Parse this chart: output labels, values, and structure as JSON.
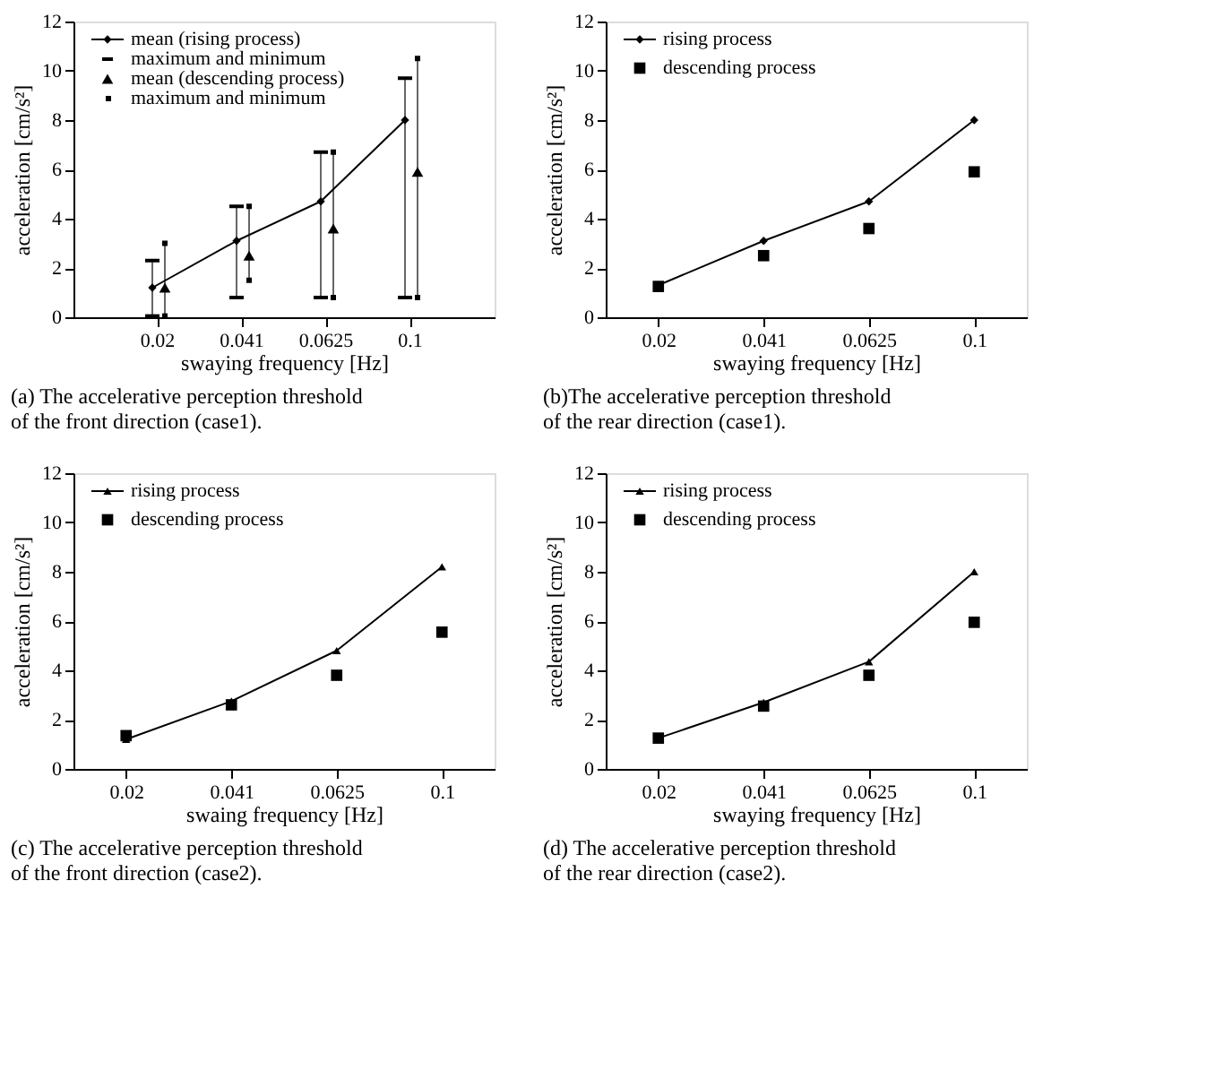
{
  "chart_data": [
    {
      "type": "line",
      "title": [
        "(a) The accelerative perception threshold",
        "of the front direction (case1)."
      ],
      "xlabel": "swaying frequency [Hz]",
      "ylabel": "acceleration [cm/s²]",
      "categories": [
        "0.02",
        "0.041",
        "0.0625",
        "0.1"
      ],
      "ylim": [
        0,
        12
      ],
      "yticks": [
        0,
        2,
        4,
        6,
        8,
        10,
        12
      ],
      "grid": false,
      "legend": "top left",
      "annotations": [
        "maximum and minimum",
        "maximum and minimum"
      ],
      "series": [
        {
          "name": "mean (rising process)",
          "type": "line",
          "marker": "diamond",
          "color": "#000000",
          "values": [
            1.2,
            3.1,
            4.7,
            8.0
          ],
          "errors": [
            [
              0.05,
              2.3
            ],
            [
              0.8,
              4.5
            ],
            [
              0.8,
              6.7
            ],
            [
              0.8,
              9.7
            ]
          ]
        },
        {
          "name": "mean (descending process)",
          "type": "scatter",
          "marker": "triangle",
          "color": "#000000",
          "values": [
            1.2,
            2.5,
            3.6,
            5.9
          ],
          "errors": [
            [
              0.05,
              3.0
            ],
            [
              1.5,
              4.5
            ],
            [
              0.8,
              6.7
            ],
            [
              0.8,
              10.5
            ]
          ]
        }
      ]
    },
    {
      "type": "line",
      "title": [
        "(b)The accelerative perception threshold",
        "of the rear direction (case1)."
      ],
      "xlabel": "swaying frequency [Hz]",
      "ylabel": "acceleration [cm/s²]",
      "categories": [
        "0.02",
        "0.041",
        "0.0625",
        "0.1"
      ],
      "ylim": [
        0,
        12
      ],
      "yticks": [
        0,
        2,
        4,
        6,
        8,
        10,
        12
      ],
      "grid": false,
      "legend": "top left",
      "series": [
        {
          "name": "rising process",
          "type": "line",
          "marker": "diamond",
          "color": "#000000",
          "values": [
            1.3,
            3.1,
            4.7,
            8.0
          ]
        },
        {
          "name": "descending process",
          "type": "scatter",
          "marker": "square",
          "color": "#000000",
          "values": [
            1.25,
            2.5,
            3.6,
            5.9
          ]
        }
      ]
    },
    {
      "type": "line",
      "title": [
        "(c) The accelerative perception threshold",
        "of the front direction (case2)."
      ],
      "xlabel": "swaing frequency [Hz]",
      "ylabel": "acceleration [cm/s²]",
      "categories": [
        "0.02",
        "0.041",
        "0.0625",
        "0.1"
      ],
      "ylim": [
        0,
        12
      ],
      "yticks": [
        0,
        2,
        4,
        6,
        8,
        10,
        12
      ],
      "grid": false,
      "legend": "top left",
      "series": [
        {
          "name": "rising process",
          "type": "line",
          "marker": "triangle",
          "color": "#000000",
          "values": [
            1.2,
            2.75,
            4.8,
            8.2
          ]
        },
        {
          "name": "descending process",
          "type": "scatter",
          "marker": "square",
          "color": "#000000",
          "values": [
            1.35,
            2.6,
            3.8,
            5.55
          ]
        }
      ]
    },
    {
      "type": "line",
      "title": [
        "(d) The accelerative perception threshold",
        "of the rear direction (case2)."
      ],
      "xlabel": "swaying frequency [Hz]",
      "ylabel": "acceleration [cm/s²]",
      "categories": [
        "0.02",
        "0.041",
        "0.0625",
        "0.1"
      ],
      "ylim": [
        0,
        12
      ],
      "yticks": [
        0,
        2,
        4,
        6,
        8,
        10,
        12
      ],
      "grid": false,
      "legend": "top left",
      "series": [
        {
          "name": "rising process",
          "type": "line",
          "marker": "triangle",
          "color": "#000000",
          "values": [
            1.25,
            2.7,
            4.35,
            8.0
          ]
        },
        {
          "name": "descending process",
          "type": "scatter",
          "marker": "square",
          "color": "#000000",
          "values": [
            1.25,
            2.55,
            3.8,
            5.95
          ]
        }
      ]
    }
  ]
}
